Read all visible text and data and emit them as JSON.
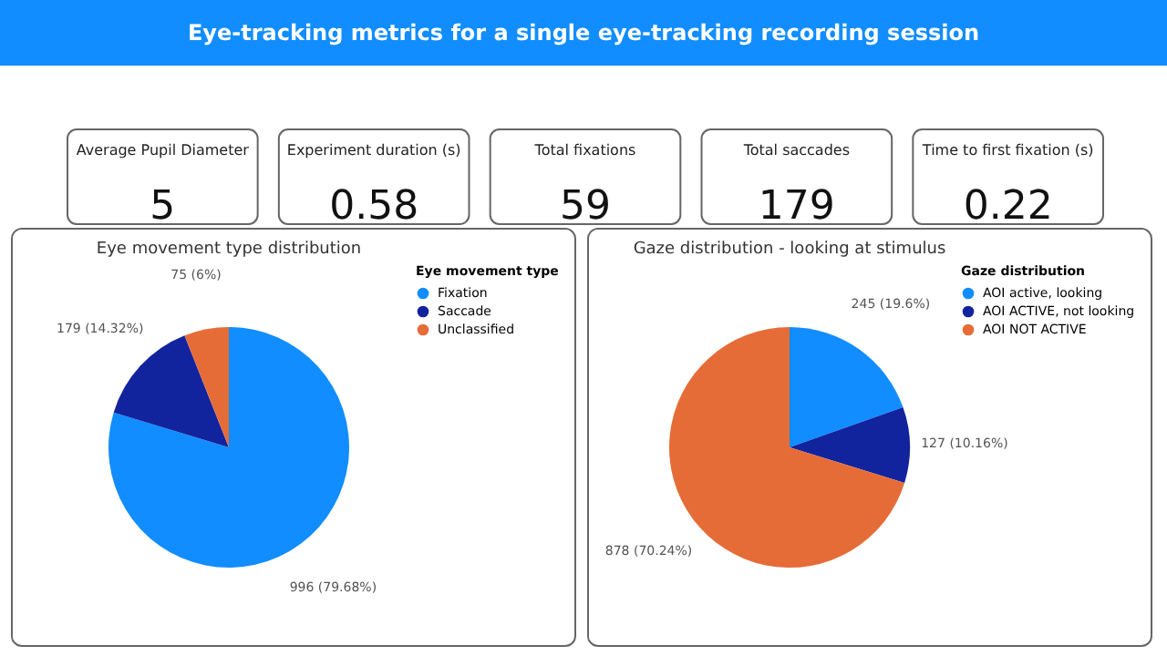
{
  "chart_data": [
    {
      "type": "other",
      "title": "Eye-tracking metrics for a single eye-tracking recording session",
      "categories": [
        "Average Pupil Diameter",
        "Experiment duration (s)",
        "Total fixations",
        "Total saccades",
        "Time to first fixation (s)"
      ],
      "values": [
        5,
        0.58,
        59,
        179,
        0.22
      ],
      "data_labels": true
    },
    {
      "type": "pie",
      "title": "Eye movement type distribution",
      "legend_title": "Eye movement type",
      "categories": [
        "Fixation",
        "Saccade",
        "Unclassified"
      ],
      "values": [
        996,
        179,
        75
      ],
      "colors": [
        "#118dff",
        "#12239e",
        "#e66c37"
      ],
      "value_labels": [
        "996 (79.68%)",
        "179 (14.32%)",
        "75 (6%)"
      ],
      "legend": "right"
    },
    {
      "type": "pie",
      "title": "Gaze distribution - looking at stimulus",
      "legend_title": "Gaze distribution",
      "categories": [
        "AOI active, looking",
        "AOI ACTIVE, not looking",
        "AOI NOT ACTIVE"
      ],
      "values": [
        245,
        127,
        878
      ],
      "colors": [
        "#118dff",
        "#12239e",
        "#e66c37"
      ],
      "value_labels": [
        "245 (19.6%)",
        "127 (10.16%)",
        "878 (70.24%)"
      ],
      "legend": "right"
    }
  ]
}
